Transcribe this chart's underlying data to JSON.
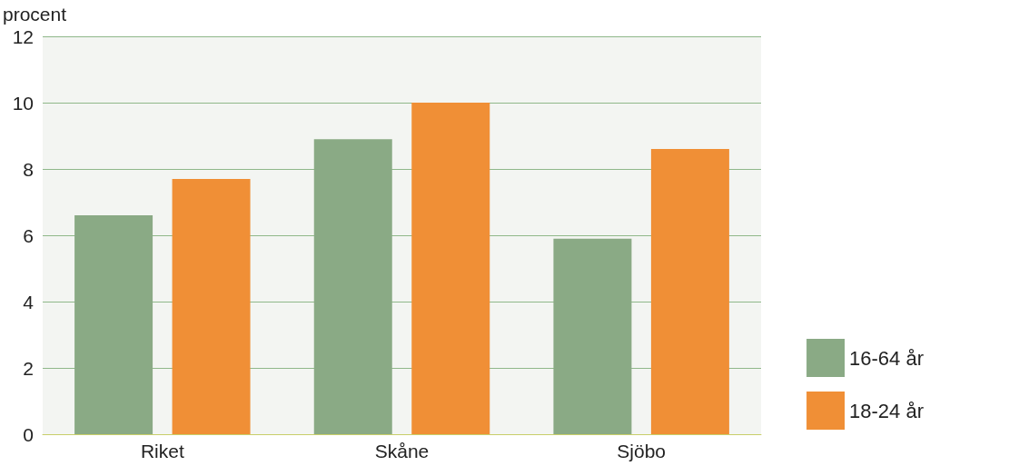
{
  "chart_data": {
    "type": "bar",
    "ylabel": "procent",
    "categories": [
      "Riket",
      "Skåne",
      "Sjöbo"
    ],
    "series": [
      {
        "name": "16-64 år",
        "color": "#8aaa85",
        "values": [
          6.6,
          8.9,
          5.9
        ]
      },
      {
        "name": "18-24 år",
        "color": "#f08f36",
        "values": [
          7.7,
          10.0,
          8.6
        ]
      }
    ],
    "ylim": [
      0,
      12
    ],
    "yticks": [
      0,
      2,
      4,
      6,
      8,
      10,
      12
    ],
    "grid": "y",
    "legend": "bottom right"
  }
}
